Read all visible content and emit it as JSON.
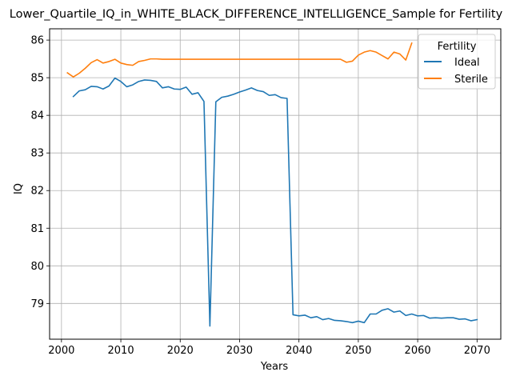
{
  "chart_data": {
    "type": "line",
    "title": "Lower_Quartile_IQ_in_WHITE_BLACK_DIFFERENCE_INTELLIGENCE_Sample for Fertility",
    "xlabel": "Years",
    "ylabel": "IQ",
    "xlim": [
      1998,
      2074
    ],
    "ylim": [
      78.05,
      86.3
    ],
    "x_ticks": [
      2000,
      2010,
      2020,
      2030,
      2040,
      2050,
      2060,
      2070
    ],
    "y_ticks": [
      79,
      80,
      81,
      82,
      83,
      84,
      85,
      86
    ],
    "grid": true,
    "legend": {
      "title": "Fertility",
      "placement": "top-right"
    },
    "series": [
      {
        "name": "Ideal",
        "color": "#1f77b4",
        "x": [
          2002,
          2003,
          2004,
          2005,
          2006,
          2007,
          2008,
          2009,
          2010,
          2011,
          2012,
          2013,
          2014,
          2015,
          2016,
          2017,
          2018,
          2019,
          2020,
          2021,
          2022,
          2023,
          2024,
          2025,
          2026,
          2027,
          2028,
          2029,
          2030,
          2031,
          2032,
          2033,
          2034,
          2035,
          2036,
          2037,
          2038,
          2039,
          2040,
          2041,
          2042,
          2043,
          2044,
          2045,
          2046,
          2047,
          2048,
          2049,
          2050,
          2051,
          2052,
          2053,
          2054,
          2055,
          2056,
          2057,
          2058,
          2059,
          2060,
          2061,
          2062,
          2063,
          2064,
          2065,
          2066,
          2067,
          2068,
          2069,
          2070
        ],
        "values": [
          84.5,
          84.65,
          84.68,
          84.77,
          84.76,
          84.7,
          84.78,
          84.99,
          84.9,
          84.76,
          84.81,
          84.9,
          84.94,
          84.93,
          84.9,
          84.73,
          84.76,
          84.7,
          84.69,
          84.75,
          84.56,
          84.6,
          84.37,
          78.4,
          84.36,
          84.48,
          84.51,
          84.56,
          84.62,
          84.67,
          84.73,
          84.66,
          84.63,
          84.53,
          84.55,
          84.47,
          84.45,
          78.7,
          78.67,
          78.69,
          78.62,
          78.65,
          78.57,
          78.6,
          78.55,
          78.54,
          78.52,
          78.49,
          78.53,
          78.49,
          78.72,
          78.72,
          78.82,
          78.86,
          78.77,
          78.8,
          78.68,
          78.72,
          78.67,
          78.68,
          78.61,
          78.62,
          78.61,
          78.62,
          78.62,
          78.58,
          78.59,
          78.54,
          78.57
        ]
      },
      {
        "name": "Sterile",
        "color": "#ff7f0e",
        "x": [
          2001,
          2002,
          2003,
          2004,
          2005,
          2006,
          2007,
          2008,
          2009,
          2010,
          2011,
          2012,
          2013,
          2014,
          2015,
          2016,
          2017,
          2018,
          2019,
          2020,
          2021,
          2022,
          2023,
          2024,
          2025,
          2026,
          2027,
          2028,
          2029,
          2030,
          2031,
          2032,
          2033,
          2034,
          2035,
          2036,
          2037,
          2038,
          2039,
          2040,
          2041,
          2042,
          2043,
          2044,
          2045,
          2046,
          2047,
          2048,
          2049,
          2050,
          2051,
          2052,
          2053,
          2054,
          2055,
          2056,
          2057,
          2058,
          2059
        ],
        "values": [
          85.13,
          85.02,
          85.12,
          85.25,
          85.4,
          85.48,
          85.39,
          85.43,
          85.49,
          85.39,
          85.35,
          85.33,
          85.43,
          85.46,
          85.5,
          85.5,
          85.49,
          85.49,
          85.49,
          85.49,
          85.49,
          85.49,
          85.49,
          85.49,
          85.49,
          85.49,
          85.49,
          85.49,
          85.49,
          85.49,
          85.49,
          85.49,
          85.49,
          85.49,
          85.49,
          85.49,
          85.49,
          85.49,
          85.49,
          85.49,
          85.49,
          85.49,
          85.49,
          85.49,
          85.49,
          85.49,
          85.49,
          85.41,
          85.44,
          85.6,
          85.68,
          85.72,
          85.68,
          85.59,
          85.5,
          85.68,
          85.63,
          85.47,
          85.92
        ]
      }
    ]
  }
}
